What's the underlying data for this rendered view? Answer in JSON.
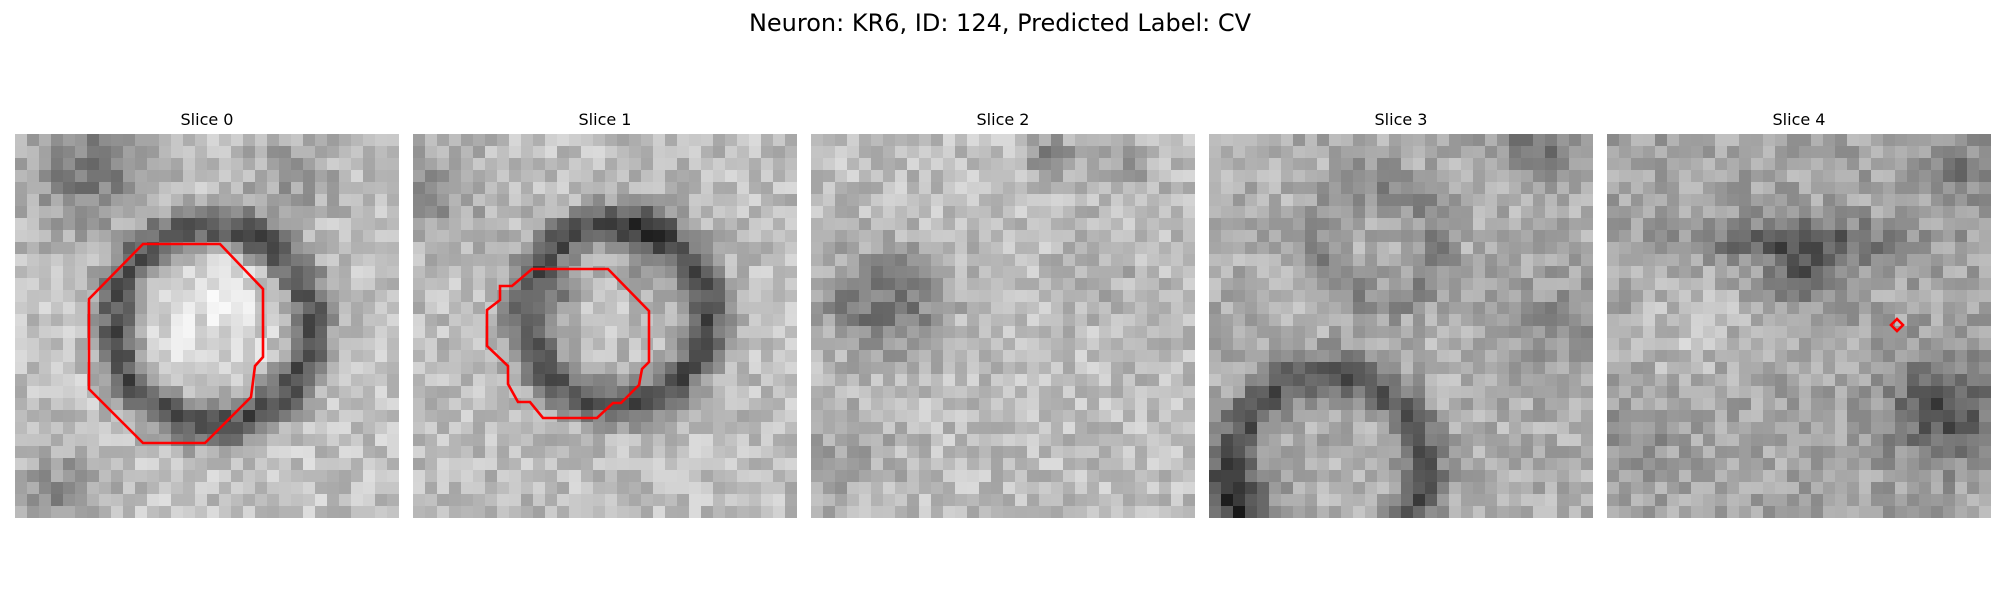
{
  "figure": {
    "title": "Neuron: KR6, ID: 124, Predicted Label: CV"
  },
  "colors": {
    "contour": "#ff0000",
    "background": "#ffffff",
    "colormap": "grayscale"
  },
  "slices": [
    {
      "title": "Slice 0",
      "has_contour": true
    },
    {
      "title": "Slice 1",
      "has_contour": true
    },
    {
      "title": "Slice 2",
      "has_contour": false
    },
    {
      "title": "Slice 3",
      "has_contour": false
    },
    {
      "title": "Slice 4",
      "has_contour": true
    }
  ]
}
